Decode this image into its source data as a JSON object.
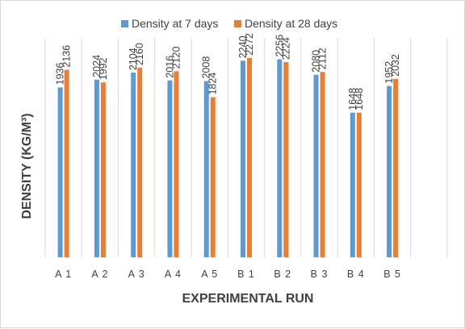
{
  "chart_data": {
    "type": "bar",
    "title": "",
    "xlabel": "EXPERIMENTAL RUN",
    "ylabel": "DENSITY (KG/M³)",
    "categories": [
      "A 1",
      "A 2",
      "A 3",
      "A 4",
      "A 5",
      "B 1",
      "B 2",
      "B 3",
      "B 4",
      "B 5"
    ],
    "series": [
      {
        "name": "Density at 7 days",
        "color": "#5b9bd5",
        "values": [
          1936,
          2024,
          2104,
          2016,
          2008,
          2240,
          2256,
          2080,
          1648,
          1952
        ]
      },
      {
        "name": "Density at 28 days",
        "color": "#ed7d31",
        "values": [
          2136,
          1992,
          2160,
          2120,
          1824,
          2272,
          2224,
          2112,
          1648,
          2032
        ]
      }
    ],
    "ylim": [
      0,
      2500
    ],
    "grid": "vertical",
    "legend": "top",
    "data_labels": true
  }
}
